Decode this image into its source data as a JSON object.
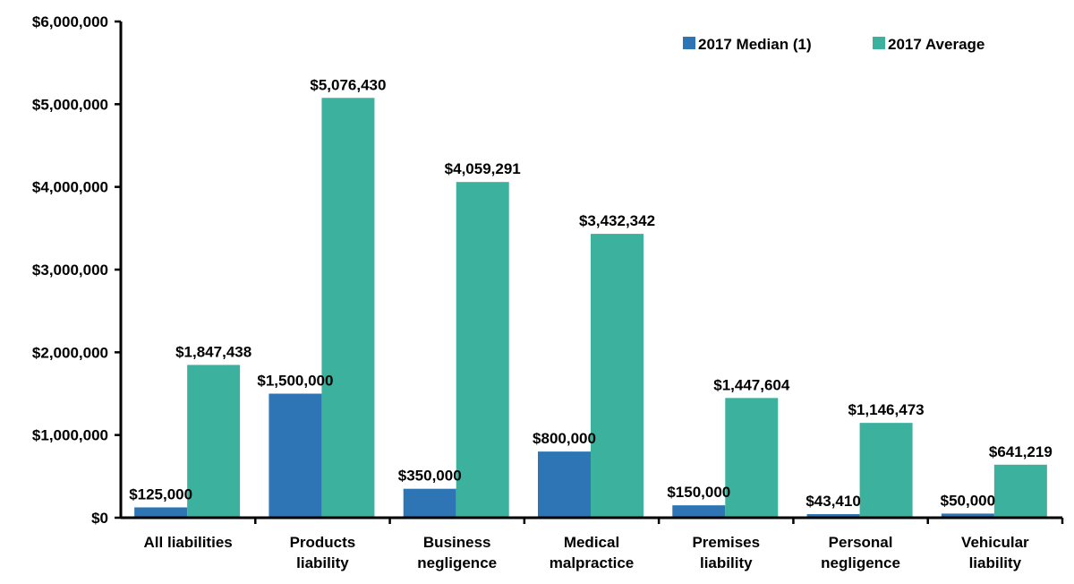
{
  "chart_data": {
    "type": "bar",
    "title": "",
    "xlabel": "",
    "ylabel": "",
    "ylim": [
      0,
      6000000
    ],
    "yticks": [
      0,
      1000000,
      2000000,
      3000000,
      4000000,
      5000000,
      6000000
    ],
    "ytick_labels": [
      "$0",
      "$1,000,000",
      "$2,000,000",
      "$3,000,000",
      "$4,000,000",
      "$5,000,000",
      "$6,000,000"
    ],
    "grid": false,
    "legend_position": "top-right",
    "categories": [
      [
        "All liabilities"
      ],
      [
        "Products",
        "liability"
      ],
      [
        "Business",
        "negligence"
      ],
      [
        "Medical",
        "malpractice"
      ],
      [
        "Premises",
        "liability"
      ],
      [
        "Personal",
        "negligence"
      ],
      [
        "Vehicular",
        "liability"
      ]
    ],
    "series": [
      {
        "name": "2017 Median (1)",
        "color": "#2e75b6",
        "values": [
          125000,
          1500000,
          350000,
          800000,
          150000,
          43410,
          50000
        ],
        "labels": [
          "$125,000",
          "$1,500,000",
          "$350,000",
          "$800,000",
          "$150,000",
          "$43,410",
          "$50,000"
        ]
      },
      {
        "name": "2017 Average",
        "color": "#3cb19d",
        "values": [
          1847438,
          5076430,
          4059291,
          3432342,
          1447604,
          1146473,
          641219
        ],
        "labels": [
          "$1,847,438",
          "$5,076,430",
          "$4,059,291",
          "$3,432,342",
          "$1,447,604",
          "$1,146,473",
          "$641,219"
        ]
      }
    ]
  }
}
